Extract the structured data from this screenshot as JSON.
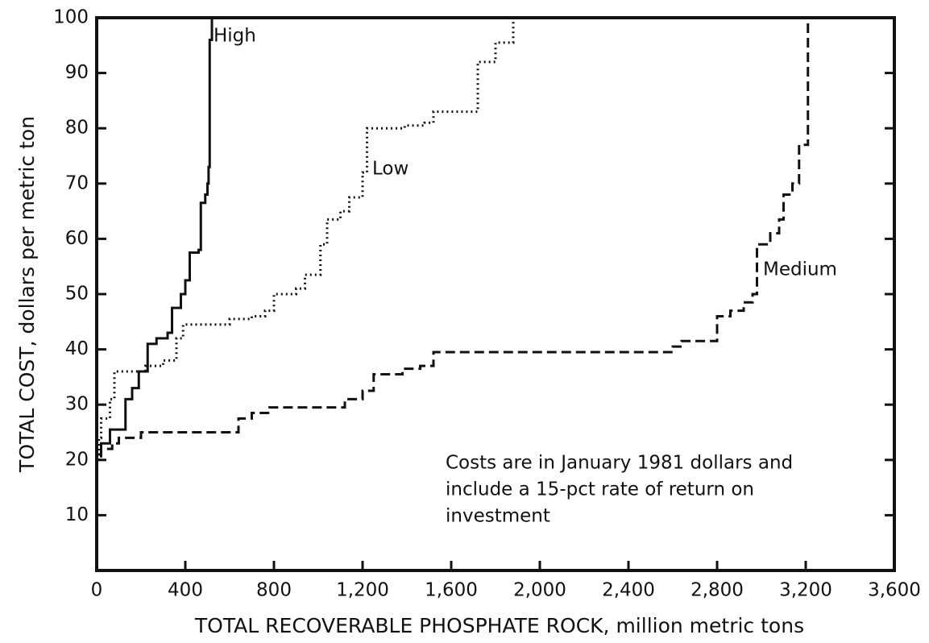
{
  "chart_data": {
    "type": "line",
    "xlabel": "TOTAL RECOVERABLE PHOSPHATE ROCK, million metric tons",
    "ylabel": "TOTAL COST, dollars per metric ton",
    "annotation": [
      "Costs are in January 1981 dollars and",
      "include a 15-pct rate of return on",
      "investment"
    ],
    "xlim": [
      0,
      3600
    ],
    "ylim": [
      0,
      100
    ],
    "xticks": [
      0,
      400,
      800,
      {
        "value": 1200,
        "label": "1,200"
      },
      {
        "value": 1600,
        "label": "1,600"
      },
      {
        "value": 2000,
        "label": "2,000"
      },
      {
        "value": 2400,
        "label": "2,400"
      },
      {
        "value": 2800,
        "label": "2,800"
      },
      {
        "value": 3200,
        "label": "3,200"
      },
      {
        "value": 3600,
        "label": "3,600"
      }
    ],
    "yticks": [
      10,
      20,
      30,
      40,
      50,
      60,
      70,
      80,
      90,
      100
    ],
    "series": [
      {
        "name": "High",
        "color": "#111111",
        "dash": "solid",
        "x": [
          0,
          0,
          20,
          20,
          60,
          60,
          130,
          130,
          160,
          160,
          190,
          190,
          230,
          230,
          270,
          270,
          320,
          320,
          340,
          340,
          380,
          380,
          400,
          400,
          420,
          420,
          460,
          460,
          470,
          470,
          490,
          490,
          500,
          500,
          505,
          505,
          510,
          510,
          520,
          520
        ],
        "values": [
          16,
          21,
          21,
          23,
          23,
          25.5,
          25.5,
          31,
          31,
          33,
          33,
          36,
          36,
          41,
          41,
          42,
          42,
          43,
          43,
          47.5,
          47.5,
          50,
          50,
          52.5,
          52.5,
          57.5,
          57.5,
          58,
          58,
          66.5,
          66.5,
          68,
          68,
          70,
          70,
          73,
          73,
          96,
          96,
          100
        ]
      },
      {
        "name": "Low",
        "color": "#111111",
        "dash": "dotted",
        "x": [
          0,
          0,
          10,
          10,
          20,
          20,
          60,
          60,
          80,
          80,
          220,
          220,
          300,
          300,
          360,
          360,
          390,
          390,
          600,
          600,
          700,
          700,
          760,
          760,
          800,
          800,
          900,
          900,
          940,
          940,
          1010,
          1010,
          1040,
          1040,
          1100,
          1100,
          1140,
          1140,
          1200,
          1200,
          1220,
          1220,
          1390,
          1390,
          1480,
          1480,
          1520,
          1520,
          1720,
          1720,
          1800,
          1800,
          1880,
          1880
        ],
        "values": [
          16,
          20,
          20,
          24,
          24,
          27.5,
          27.5,
          31,
          31,
          36,
          36,
          37,
          37,
          38,
          38,
          42,
          42,
          44.5,
          44.5,
          45.5,
          45.5,
          46,
          46,
          47,
          47,
          50,
          50,
          51,
          51,
          53.5,
          53.5,
          59,
          59,
          63.5,
          63.5,
          65,
          65,
          67.5,
          67.5,
          72,
          72,
          80,
          80,
          80.5,
          80.5,
          81,
          81,
          83,
          83,
          92,
          92,
          95.5,
          95.5,
          100
        ]
      },
      {
        "name": "Medium",
        "color": "#111111",
        "dash": "dashed",
        "x": [
          0,
          0,
          20,
          20,
          70,
          70,
          100,
          100,
          200,
          200,
          640,
          640,
          700,
          700,
          780,
          780,
          1120,
          1120,
          1200,
          1200,
          1250,
          1250,
          1380,
          1380,
          1460,
          1460,
          1520,
          1520,
          2600,
          2600,
          2640,
          2640,
          2800,
          2800,
          2860,
          2860,
          2920,
          2920,
          2960,
          2960,
          2980,
          2980,
          3040,
          3040,
          3080,
          3080,
          3100,
          3100,
          3140,
          3140,
          3170,
          3170,
          3210,
          3210
        ],
        "values": [
          16,
          20,
          20,
          22,
          22,
          23,
          23,
          24,
          24,
          25,
          25,
          27.5,
          27.5,
          28.5,
          28.5,
          29.5,
          29.5,
          31,
          31,
          32.5,
          32.5,
          35.5,
          35.5,
          36.5,
          36.5,
          37,
          37,
          39.5,
          39.5,
          40.5,
          40.5,
          41.5,
          41.5,
          46,
          46,
          47,
          47,
          48.5,
          48.5,
          50,
          50,
          59,
          59,
          61,
          61,
          63.5,
          63.5,
          68,
          68,
          70,
          70,
          77,
          77,
          100
        ]
      }
    ]
  }
}
